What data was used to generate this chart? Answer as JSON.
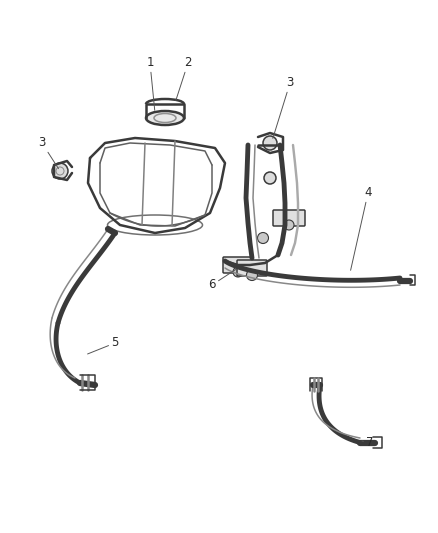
{
  "bg_color": "#ffffff",
  "line_color": "#3a3a3a",
  "label_color": "#2a2a2a",
  "fig_width": 4.38,
  "fig_height": 5.33,
  "dpi": 100,
  "lw_thick": 2.8,
  "lw_med": 1.8,
  "lw_thin": 1.1,
  "lw_hose": 3.5,
  "label_fontsize": 8.5,
  "leader_lw": 0.7,
  "leader_color": "#555555"
}
